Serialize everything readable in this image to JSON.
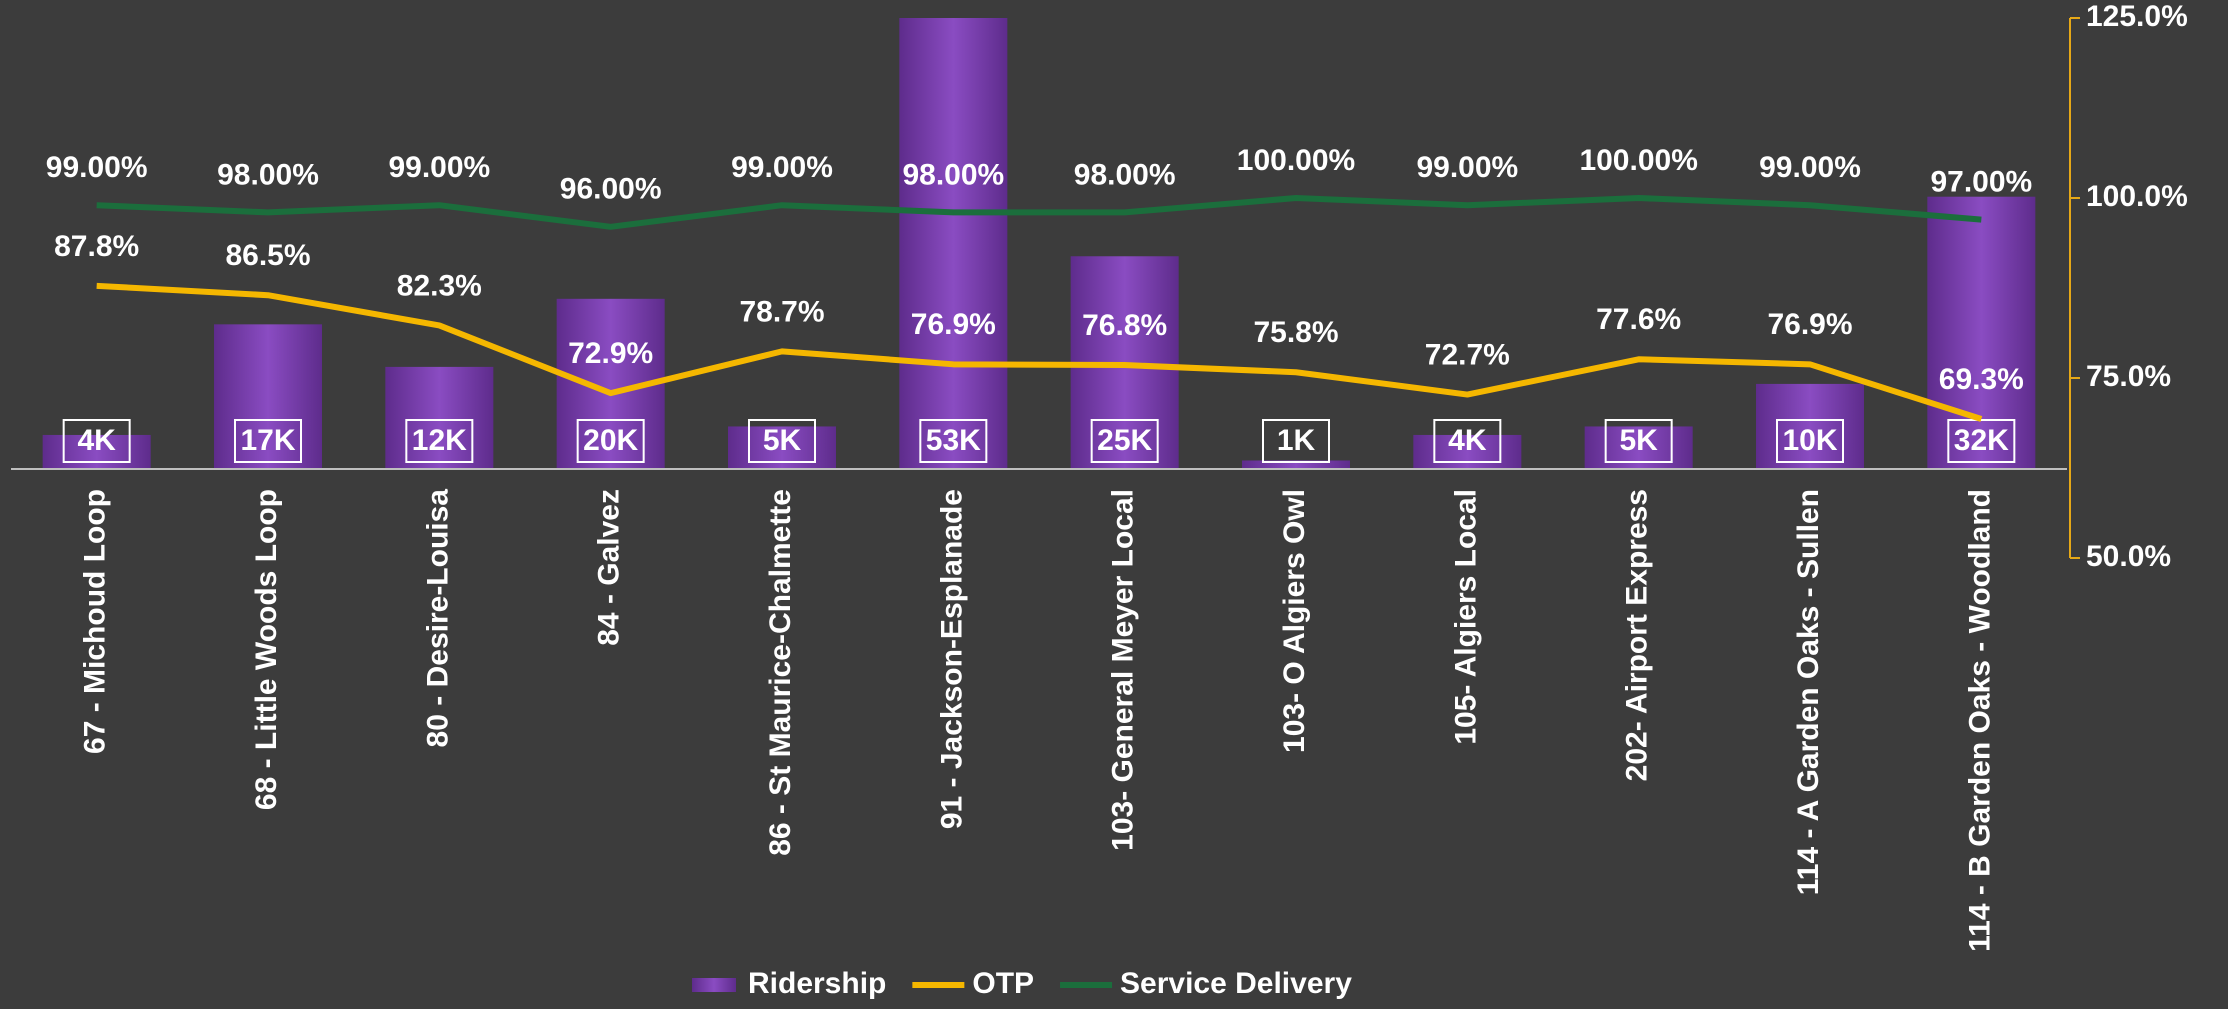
{
  "chart_data": {
    "type": "bar_line",
    "categories": [
      "67 - Michoud Loop",
      "68 - Little Woods Loop",
      "80 - Desire-Louisa",
      "84 - Galvez",
      "86 - St Maurice-Chalmette",
      "91 - Jackson-Esplanade",
      "103- General Meyer Local",
      "103- O Algiers Owl",
      "105- Algiers Local",
      "202- Airport Express",
      "114 - A Garden Oaks - Sullen",
      "114 - B Garden Oaks - Woodland"
    ],
    "series": [
      {
        "name": "Ridership",
        "color": "#7b3fb0",
        "values": [
          4000,
          17000,
          12000,
          20000,
          5000,
          53000,
          25000,
          1000,
          4000,
          5000,
          10000,
          32000
        ],
        "value_labels": [
          "4K",
          "17K",
          "12K",
          "20K",
          "5K",
          "53K",
          "25K",
          "1K",
          "4K",
          "5K",
          "10K",
          "32K"
        ]
      },
      {
        "name": "OTP",
        "color": "#f5b700",
        "axis": "y2",
        "values": [
          87.8,
          86.5,
          82.3,
          72.9,
          78.7,
          76.9,
          76.8,
          75.8,
          72.7,
          77.6,
          76.9,
          69.3
        ],
        "value_labels": [
          "87.8%",
          "86.5%",
          "82.3%",
          "72.9%",
          "78.7%",
          "76.9%",
          "76.8%",
          "75.8%",
          "72.7%",
          "77.6%",
          "76.9%",
          "69.3%"
        ]
      },
      {
        "name": "Service Delivery",
        "color": "#1b6e3c",
        "axis": "y2",
        "values": [
          99,
          98,
          99,
          96,
          99,
          98,
          98,
          100,
          99,
          100,
          99,
          97
        ],
        "value_labels": [
          "99.00%",
          "98.00%",
          "99.00%",
          "96.00%",
          "99.00%",
          "98.00%",
          "98.00%",
          "100.00%",
          "99.00%",
          "100.00%",
          "99.00%",
          "97.00%"
        ]
      }
    ],
    "y2lim": [
      50,
      125
    ],
    "y2ticks": [
      {
        "value": 50,
        "label": "50.0%"
      },
      {
        "value": 75,
        "label": "75.0%"
      },
      {
        "value": 100,
        "label": "100.0%"
      },
      {
        "value": 125,
        "label": "125.0%"
      }
    ],
    "legend": "bottom"
  }
}
